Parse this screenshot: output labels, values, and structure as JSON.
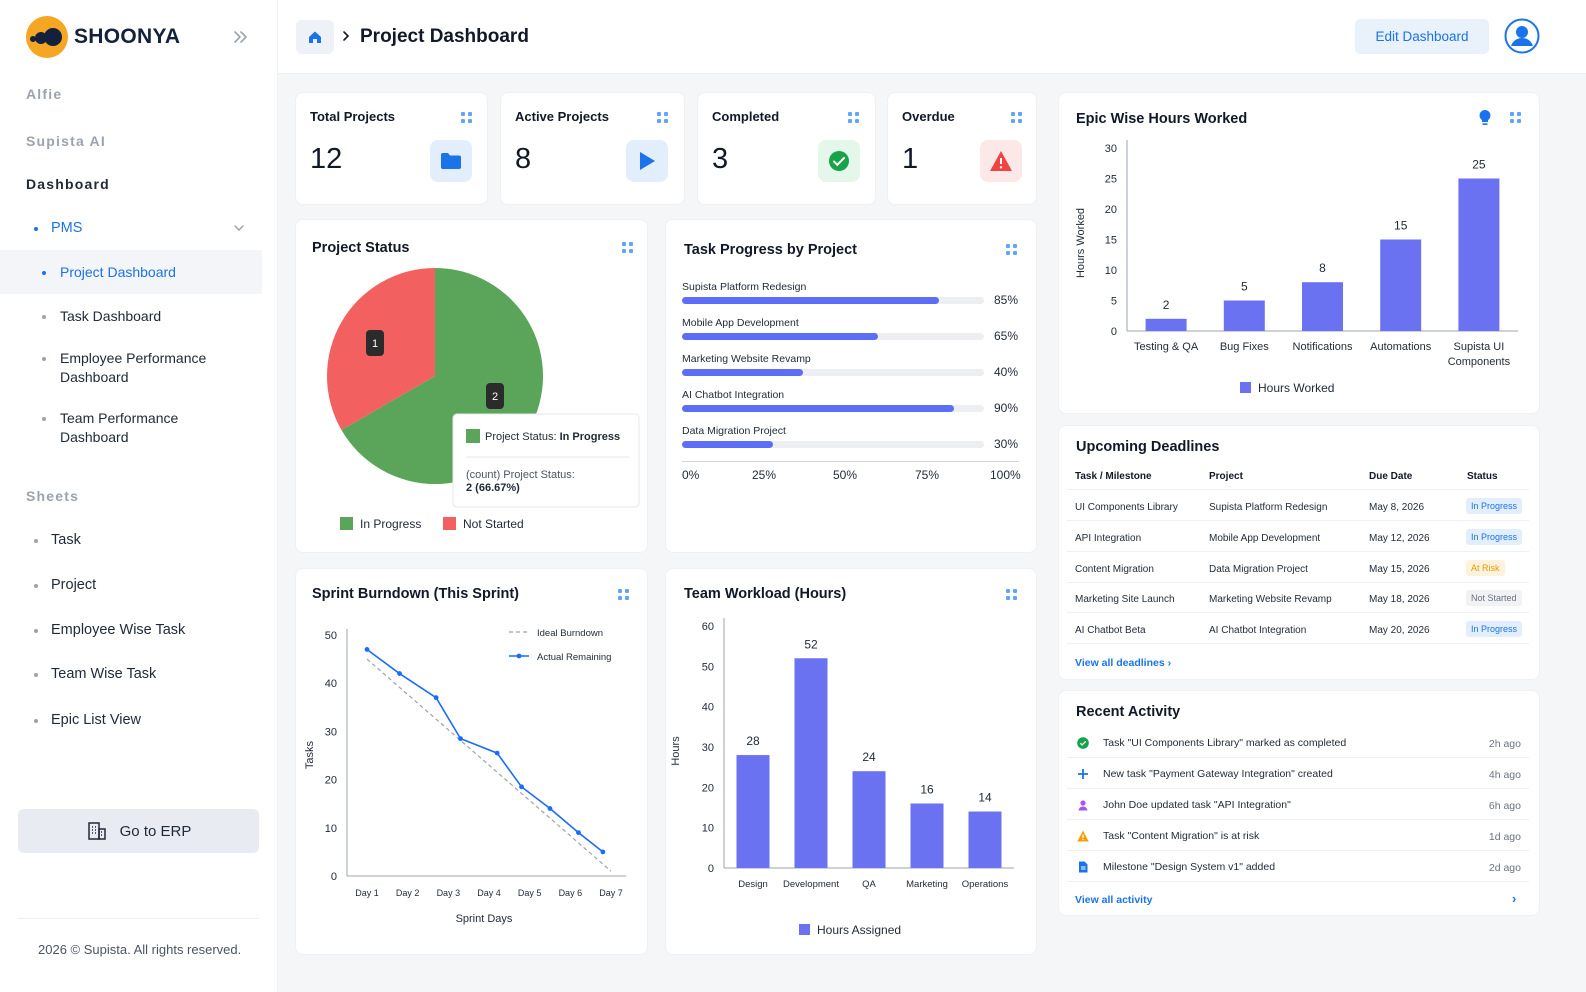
{
  "brand": {
    "name": "SHOONYA"
  },
  "sidebar": {
    "sections": {
      "alfie": "Alfie",
      "supista_ai": "Supista AI",
      "dashboard": "Dashboard",
      "sheets": "Sheets"
    },
    "pms": "PMS",
    "pms_items": [
      "Project Dashboard",
      "Task Dashboard",
      "Employee Performance Dashboard",
      "Team Performance Dashboard"
    ],
    "sheet_items": [
      "Task",
      "Project",
      "Employee Wise Task",
      "Team Wise Task",
      "Epic List View"
    ],
    "erp_button": "Go to ERP",
    "footer": "2026 ©  Supista. All rights reserved."
  },
  "header": {
    "title": "Project Dashboard",
    "edit_button": "Edit Dashboard"
  },
  "stats": [
    {
      "title": "Total Projects",
      "value": "12",
      "icon": "folder-icon",
      "color": "#1a73e8"
    },
    {
      "title": "Active Projects",
      "value": "8",
      "icon": "play-icon",
      "color": "#1a73e8"
    },
    {
      "title": "Completed",
      "value": "3",
      "icon": "check-circle-icon",
      "color": "#16a34a"
    },
    {
      "title": "Overdue",
      "value": "1",
      "icon": "warning-icon",
      "color": "#ef4444"
    }
  ],
  "project_status": {
    "title": "Project Status",
    "tooltip_header_prefix": "Project Status: ",
    "tooltip_header_value": "In Progress",
    "tooltip_line1": "(count) Project Status:",
    "tooltip_line2": "2 (66.67%)"
  },
  "task_progress": {
    "title": "Task Progress by Project",
    "rows": [
      {
        "label": "Supista Platform Redesign",
        "value": 85,
        "pct": "85%"
      },
      {
        "label": "Mobile App Development",
        "value": 65,
        "pct": "65%"
      },
      {
        "label": "Marketing Website Revamp",
        "value": 40,
        "pct": "40%"
      },
      {
        "label": "AI Chatbot Integration",
        "value": 90,
        "pct": "90%"
      },
      {
        "label": "Data Migration Project",
        "value": 30,
        "pct": "30%"
      }
    ],
    "axis": [
      "0%",
      "25%",
      "50%",
      "75%",
      "100%"
    ]
  },
  "sprint": {
    "title": "Sprint Burndown (This Sprint)"
  },
  "workload": {
    "title": "Team Workload (Hours)"
  },
  "epic": {
    "title": "Epic Wise Hours Worked"
  },
  "deadlines": {
    "title": "Upcoming Deadlines",
    "headers": [
      "Task / Milestone",
      "Project",
      "Due Date",
      "Status"
    ],
    "rows": [
      {
        "task": "UI Components Library",
        "project": "Supista Platform Redesign",
        "date": "May 8, 2026",
        "status": "In Progress",
        "kind": "progress"
      },
      {
        "task": "API Integration",
        "project": "Mobile App Development",
        "date": "May 12, 2026",
        "status": "In Progress",
        "kind": "progress"
      },
      {
        "task": "Content Migration",
        "project": "Data Migration Project",
        "date": "May 15, 2026",
        "status": "At Risk",
        "kind": "risk"
      },
      {
        "task": "Marketing Site Launch",
        "project": "Marketing Website Revamp",
        "date": "May 18, 2026",
        "status": "Not Started",
        "kind": "not"
      },
      {
        "task": "AI Chatbot Beta",
        "project": "AI Chatbot Integration",
        "date": "May 20, 2026",
        "status": "In Progress",
        "kind": "progress"
      }
    ],
    "link": "View all deadlines"
  },
  "activity": {
    "title": "Recent Activity",
    "items": [
      {
        "icon": "check-circle-icon",
        "text": "Task \"UI Components Library\" marked as completed",
        "time": "2h ago"
      },
      {
        "icon": "plus-icon",
        "text": "New task \"Payment Gateway Integration\" created",
        "time": "4h ago"
      },
      {
        "icon": "user-icon",
        "text": "John Doe updated task \"API Integration\"",
        "time": "6h ago"
      },
      {
        "icon": "warning-icon",
        "text": "Task \"Content Migration\" is at risk",
        "time": "1d ago"
      },
      {
        "icon": "document-icon",
        "text": "Milestone \"Design System v1\" added",
        "time": "2d ago"
      }
    ],
    "link": "View all activity"
  },
  "colors": {
    "accent": "#1a73e8",
    "bar": "#6b72f2",
    "green": "#5aa55a",
    "red": "#f26160"
  },
  "chart_data": [
    {
      "type": "pie",
      "categories": [
        "In Progress",
        "Not Started"
      ],
      "values": [
        2,
        1
      ],
      "colors": [
        "#5aa55a",
        "#f26160"
      ],
      "legend": "bottom"
    },
    {
      "type": "bar",
      "categories": [
        "Supista Platform Redesign",
        "Mobile App Development",
        "Marketing Website Revamp",
        "AI Chatbot Integration",
        "Data Migration Project"
      ],
      "values": [
        85,
        65,
        40,
        90,
        30
      ],
      "xlim": [
        0,
        100
      ],
      "orientation": "horizontal"
    },
    {
      "type": "line",
      "title": "",
      "xlabel": "Sprint Days",
      "ylabel": "Tasks",
      "x": [
        "Day 1",
        "Day 2",
        "Day 3",
        "Day 4",
        "Day 5",
        "Day 6",
        "Day 7"
      ],
      "ylim": [
        0,
        50
      ],
      "yticks": [
        0,
        10,
        20,
        30,
        40,
        50
      ],
      "series": [
        {
          "name": "Ideal Burndown",
          "style": "dashed",
          "points": [
            [
              1,
              45
            ],
            [
              7,
              1
            ]
          ]
        },
        {
          "name": "Actual Remaining",
          "style": "solid",
          "points": [
            [
              1,
              47
            ],
            [
              1.8,
              42
            ],
            [
              2.7,
              37
            ],
            [
              3.3,
              28.5
            ],
            [
              4.2,
              25.5
            ],
            [
              4.8,
              18.5
            ],
            [
              5.5,
              14
            ],
            [
              6.2,
              9
            ],
            [
              6.8,
              5
            ]
          ]
        }
      ],
      "legend": "top-right"
    },
    {
      "type": "bar",
      "xlabel": "",
      "ylabel": "Hours",
      "categories": [
        "Design",
        "Development",
        "QA",
        "Marketing",
        "Operations"
      ],
      "series": [
        {
          "name": "Hours Assigned",
          "values": [
            28,
            52,
            24,
            16,
            14
          ]
        }
      ],
      "ylim": [
        0,
        60
      ],
      "yticks": [
        0,
        10,
        20,
        30,
        40,
        50,
        60
      ],
      "legend": "bottom"
    },
    {
      "type": "bar",
      "xlabel": "",
      "ylabel": "Hours Worked",
      "categories": [
        "Testing & QA",
        "Bug Fixes",
        "Notifications",
        "Automations",
        "Supista UI Components"
      ],
      "series": [
        {
          "name": "Hours Worked",
          "values": [
            2,
            5,
            8,
            15,
            25
          ]
        }
      ],
      "ylim": [
        0,
        30
      ],
      "yticks": [
        0,
        5,
        10,
        15,
        20,
        25,
        30
      ],
      "legend": "bottom"
    }
  ]
}
